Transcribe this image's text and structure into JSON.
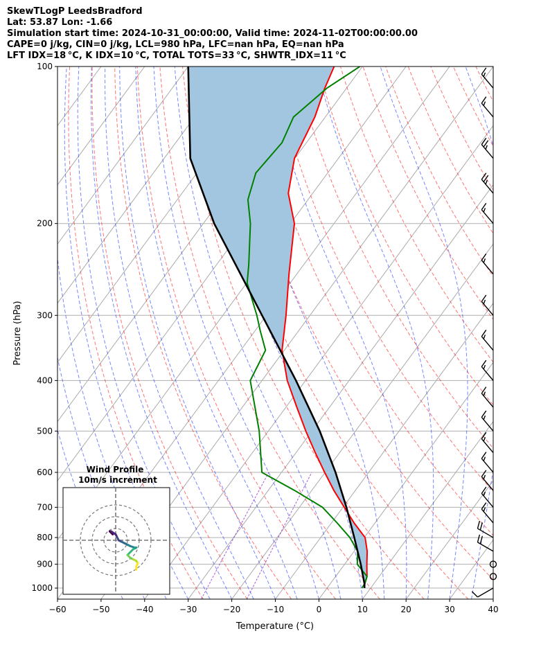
{
  "header": {
    "line1": "SkewTLogP LeedsBradford",
    "line2": "Lat: 53.87   Lon: -1.66",
    "line3": "Simulation start time: 2024-10-31_00:00:00, Valid time: 2024-11-02T00:00:00.00",
    "line4": "CAPE=0 j/kg, CIN=0 j/kg, LCL=980 hPa, LFC=nan hPa, EQ=nan hPa",
    "line5": "LFT IDX=18$^\\circ$C, K IDX=10$^\\circ$C, TOTAL TOTS=33$^\\circ$C, SHWTR_IDX=11$^\\circ$C"
  },
  "header_display": {
    "line5": "LFT IDX=18 °C, K IDX=10 °C, TOTAL TOTS=33 °C, SHWTR_IDX=11 °C"
  },
  "chart_data": {
    "type": "line",
    "title": "",
    "xlabel": "Temperature (°C)",
    "ylabel": "Pressure (hPa)",
    "xlim": [
      -60,
      40
    ],
    "ylim": [
      1050,
      100
    ],
    "y_scale": "log",
    "skew": true,
    "x_ticks": [
      "−60",
      "−50",
      "−40",
      "−30",
      "−20",
      "−10",
      "0",
      "10",
      "20",
      "30",
      "40"
    ],
    "y_ticks": [
      "100",
      "200",
      "300",
      "400",
      "500",
      "600",
      "700",
      "800",
      "900",
      "1000"
    ],
    "y_tick_values": [
      100,
      200,
      300,
      400,
      500,
      600,
      700,
      800,
      900,
      1000
    ],
    "grid": true,
    "series": [
      {
        "name": "",
        "role": "temperature",
        "color": "#ff0000",
        "points": [
          [
            1000,
            8.6
          ],
          [
            980,
            7.9
          ],
          [
            950,
            7.2
          ],
          [
            900,
            5.1
          ],
          [
            850,
            3.0
          ],
          [
            800,
            0.2
          ],
          [
            750,
            -4.8
          ],
          [
            700,
            -9.7
          ],
          [
            650,
            -14.9
          ],
          [
            600,
            -20.1
          ],
          [
            550,
            -25.6
          ],
          [
            500,
            -31.4
          ],
          [
            450,
            -37.5
          ],
          [
            400,
            -44.2
          ],
          [
            350,
            -50.5
          ],
          [
            300,
            -55.5
          ],
          [
            250,
            -61.8
          ],
          [
            200,
            -69.1
          ],
          [
            175,
            -75.6
          ],
          [
            150,
            -80.1
          ],
          [
            125,
            -82.4
          ],
          [
            110,
            -85.0
          ],
          [
            100,
            -86.5
          ]
        ]
      },
      {
        "name": "",
        "role": "dewpoint",
        "color": "#008000",
        "points": [
          [
            1000,
            8.0
          ],
          [
            980,
            7.9
          ],
          [
            950,
            7.2
          ],
          [
            900,
            2.9
          ],
          [
            850,
            0.8
          ],
          [
            800,
            -3.3
          ],
          [
            750,
            -8.7
          ],
          [
            700,
            -14.7
          ],
          [
            650,
            -23.9
          ],
          [
            600,
            -34.5
          ],
          [
            500,
            -42.1
          ],
          [
            450,
            -47.1
          ],
          [
            400,
            -52.7
          ],
          [
            350,
            -54.3
          ],
          [
            320,
            -59.0
          ],
          [
            300,
            -62.2
          ],
          [
            260,
            -69.9
          ],
          [
            240,
            -72.6
          ],
          [
            200,
            -79.2
          ],
          [
            180,
            -83.8
          ],
          [
            160,
            -86.5
          ],
          [
            140,
            -85.6
          ],
          [
            125,
            -87.3
          ],
          [
            110,
            -84.5
          ],
          [
            100,
            -80.6
          ]
        ]
      },
      {
        "name": "",
        "role": "parcel",
        "color": "#000000",
        "points": [
          [
            1000,
            8.6
          ],
          [
            980,
            7.8
          ],
          [
            900,
            3.7
          ],
          [
            800,
            -2.3
          ],
          [
            700,
            -9.2
          ],
          [
            600,
            -17.6
          ],
          [
            500,
            -28.2
          ],
          [
            400,
            -42.2
          ],
          [
            300,
            -61.0
          ],
          [
            200,
            -87.5
          ],
          [
            150,
            -104.0
          ],
          [
            100,
            -120.0
          ]
        ]
      }
    ],
    "shading": {
      "between": [
        "temperature",
        "parcel"
      ],
      "color": "#a3c6e0"
    }
  },
  "wind_barbs": {
    "color": "#000000",
    "levels": [
      1000,
      950,
      900,
      850,
      800,
      750,
      700,
      650,
      600,
      550,
      500,
      450,
      400,
      350,
      300,
      250,
      200,
      175,
      150,
      125,
      110
    ],
    "speed_kt": [
      10,
      0,
      0,
      20,
      20,
      15,
      15,
      15,
      15,
      15,
      15,
      15,
      15,
      15,
      15,
      15,
      15,
      25,
      25,
      15,
      15
    ],
    "direction_deg": [
      240,
      0,
      0,
      300,
      300,
      320,
      320,
      320,
      320,
      320,
      320,
      320,
      320,
      320,
      320,
      320,
      320,
      320,
      320,
      320,
      320
    ]
  },
  "hodograph": {
    "title": "Wind Profile",
    "subtitle": "10m/s increment",
    "rings_ms": [
      10,
      20,
      30
    ],
    "points_uv": [
      [
        -1,
        2
      ],
      [
        -2,
        3
      ],
      [
        -1.5,
        3
      ],
      [
        0,
        2
      ],
      [
        0.5,
        1
      ],
      [
        1,
        0
      ],
      [
        2,
        -0.5
      ],
      [
        3,
        -1
      ],
      [
        4,
        -1.5
      ],
      [
        5,
        -2
      ],
      [
        6.5,
        -2.5
      ],
      [
        7,
        -2.5
      ],
      [
        6,
        -3
      ],
      [
        5,
        -4
      ],
      [
        4,
        -5
      ],
      [
        5,
        -6
      ],
      [
        6,
        -6.5
      ],
      [
        7,
        -7
      ],
      [
        7.5,
        -7.8
      ],
      [
        7,
        -9
      ],
      [
        7,
        -10
      ]
    ]
  }
}
